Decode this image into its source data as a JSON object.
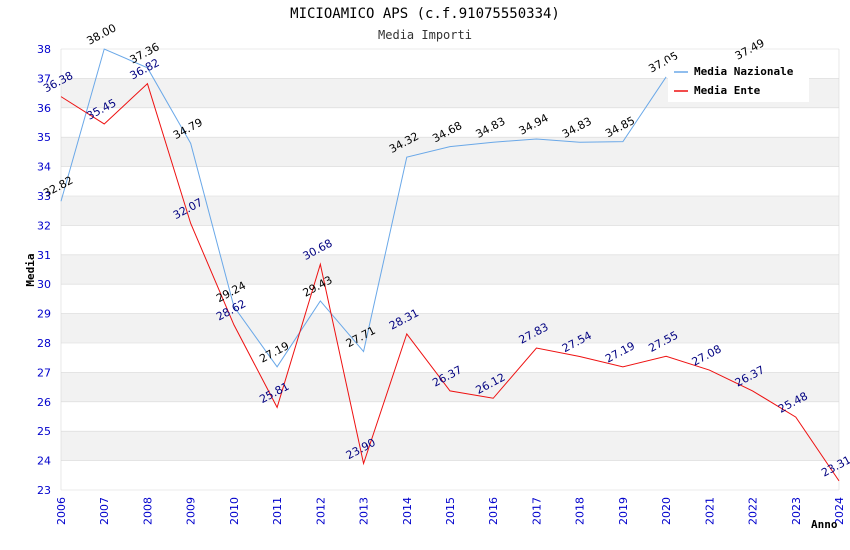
{
  "chart_data": {
    "type": "line",
    "title": "MICIOAMICO APS (c.f.91075550334)",
    "subtitle": "Media Importi",
    "xlabel": "Anno",
    "ylabel": "Media",
    "ylim": [
      23,
      38
    ],
    "yticks": [
      "23",
      "24",
      "25",
      "26",
      "27",
      "28",
      "29",
      "30",
      "31",
      "32",
      "33",
      "34",
      "35",
      "36",
      "37",
      "38"
    ],
    "categories": [
      "2006",
      "2007",
      "2008",
      "2009",
      "2010",
      "2011",
      "2012",
      "2013",
      "2014",
      "2015",
      "2016",
      "2017",
      "2018",
      "2019",
      "2020",
      "2021",
      "2022",
      "2023",
      "2024"
    ],
    "series": [
      {
        "name": "Media Nazionale",
        "color": "#6aa8e8",
        "label_color": "#000000",
        "values": [
          32.82,
          38.0,
          37.36,
          34.79,
          29.24,
          27.19,
          29.43,
          27.71,
          34.32,
          34.68,
          34.83,
          34.94,
          34.83,
          34.85,
          37.05,
          null,
          37.49,
          null,
          null
        ],
        "labels": [
          "32.82",
          "38.00",
          "37.36",
          "34.79",
          "29.24",
          "27.19",
          "29.43",
          "27.71",
          "34.32",
          "34.68",
          "34.83",
          "34.94",
          "34.83",
          "34.85",
          "37.05",
          "",
          "37.49",
          "",
          ""
        ]
      },
      {
        "name": "Media Ente",
        "color": "#ee1111",
        "label_color": "#000080",
        "values": [
          36.38,
          35.45,
          36.82,
          32.07,
          28.62,
          25.81,
          30.68,
          23.9,
          28.31,
          26.37,
          26.12,
          27.83,
          27.54,
          27.19,
          27.55,
          27.08,
          26.37,
          25.48,
          23.31
        ],
        "labels": [
          "36.38",
          "35.45",
          "36.82",
          "32.07",
          "28.62",
          "25.81",
          "30.68",
          "23.90",
          "28.31",
          "26.37",
          "26.12",
          "27.83",
          "27.54",
          "27.19",
          "27.55",
          "27.08",
          "26.37",
          "25.48",
          "23.31"
        ]
      }
    ],
    "legend": {
      "position": "top-right",
      "entries": [
        "Media Nazionale",
        "Media Ente"
      ]
    },
    "colors": {
      "band": "#f2f2f2",
      "grid": "#d8d8d8",
      "tick_text": "#0000cc"
    }
  }
}
